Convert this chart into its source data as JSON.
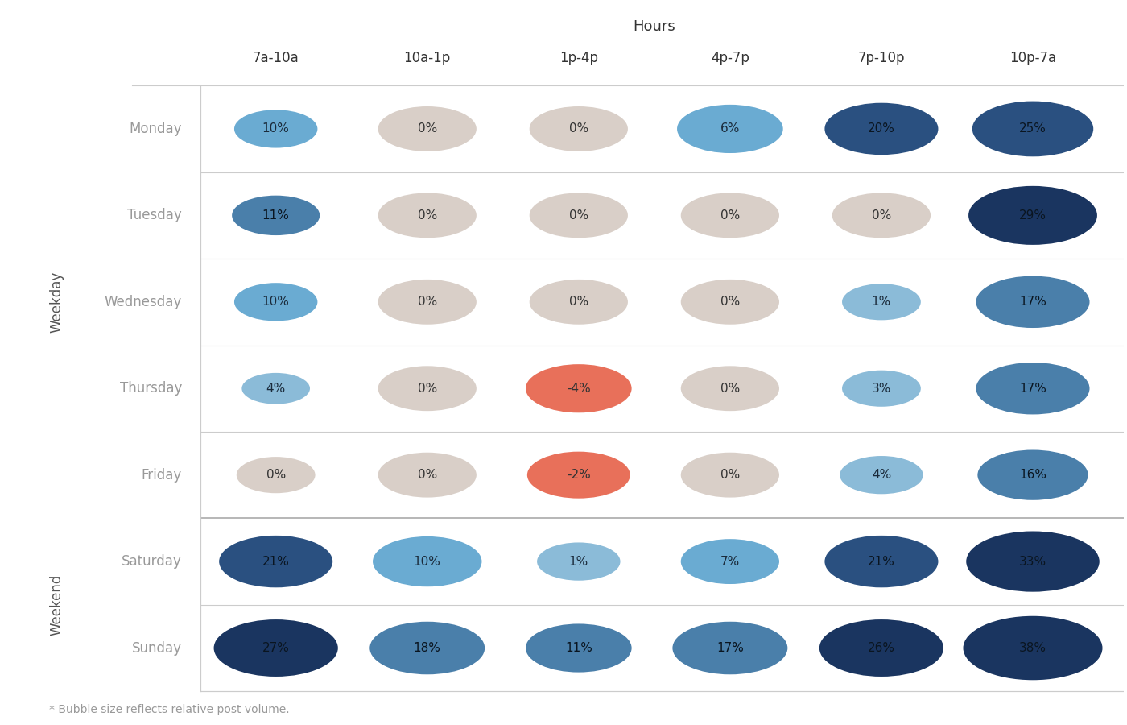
{
  "hours": [
    "7a-10a",
    "10a-1p",
    "1p-4p",
    "4p-7p",
    "7p-10p",
    "10p-7a"
  ],
  "days": [
    "Monday",
    "Tuesday",
    "Wednesday",
    "Thursday",
    "Friday",
    "Saturday",
    "Sunday"
  ],
  "weekday_label": "Weekday",
  "weekend_label": "Weekend",
  "hours_label": "Hours",
  "footnote": "* Bubble size reflects relative post volume.",
  "values": [
    [
      10,
      0,
      0,
      6,
      20,
      25
    ],
    [
      11,
      0,
      0,
      0,
      0,
      29
    ],
    [
      10,
      0,
      0,
      0,
      1,
      17
    ],
    [
      4,
      0,
      -4,
      0,
      3,
      17
    ],
    [
      0,
      0,
      -2,
      0,
      4,
      16
    ],
    [
      21,
      10,
      1,
      7,
      21,
      33
    ],
    [
      27,
      18,
      11,
      17,
      26,
      38
    ]
  ],
  "bubble_widths": [
    [
      0.55,
      0.65,
      0.65,
      0.7,
      0.75,
      0.8
    ],
    [
      0.58,
      0.65,
      0.65,
      0.65,
      0.65,
      0.85
    ],
    [
      0.55,
      0.65,
      0.65,
      0.65,
      0.52,
      0.75
    ],
    [
      0.45,
      0.65,
      0.7,
      0.65,
      0.52,
      0.75
    ],
    [
      0.52,
      0.65,
      0.68,
      0.65,
      0.55,
      0.73
    ],
    [
      0.75,
      0.72,
      0.55,
      0.65,
      0.75,
      0.88
    ],
    [
      0.82,
      0.76,
      0.7,
      0.76,
      0.82,
      0.92
    ]
  ],
  "bubble_heights": [
    [
      0.44,
      0.52,
      0.52,
      0.56,
      0.6,
      0.64
    ],
    [
      0.46,
      0.52,
      0.52,
      0.52,
      0.52,
      0.68
    ],
    [
      0.44,
      0.52,
      0.52,
      0.52,
      0.42,
      0.6
    ],
    [
      0.36,
      0.52,
      0.56,
      0.52,
      0.42,
      0.6
    ],
    [
      0.42,
      0.52,
      0.54,
      0.52,
      0.44,
      0.58
    ],
    [
      0.6,
      0.58,
      0.44,
      0.52,
      0.6,
      0.7
    ],
    [
      0.66,
      0.61,
      0.56,
      0.61,
      0.66,
      0.74
    ]
  ],
  "background_color": "#ffffff",
  "grid_color": "#cccccc",
  "separator_color": "#aaaaaa",
  "text_color_dark": "#333333",
  "text_color_label": "#999999",
  "text_color_section": "#555555",
  "colors": {
    "neutral": "#d9cfc8",
    "red": "#e8705a",
    "blue_vlight": "#8bbbd8",
    "blue_light": "#6aabd2",
    "blue_mid": "#4a7faa",
    "blue_dark": "#2a5080",
    "blue_vdark": "#1a3560"
  },
  "title_fontsize": 13,
  "label_fontsize": 12,
  "section_fontsize": 12,
  "bubble_text_fontsize": 11
}
